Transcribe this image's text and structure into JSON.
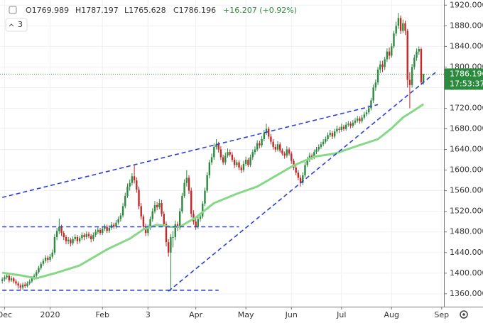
{
  "chart_data": {
    "type": "candlestick",
    "header": [
      "O1769.989",
      "H1787.197",
      "L1765.628",
      "C1786.196",
      "+16.207 (+0.92%)"
    ],
    "indicator_count": "3",
    "countdown": "17:53:37",
    "up_color": "#2b8a3e",
    "down_color": "#c62828",
    "grid": true,
    "xlim": [
      -1,
      194
    ],
    "ylim": [
      1335,
      1930
    ],
    "xticks": [
      {
        "value": 1,
        "label": "Dec"
      },
      {
        "value": 21,
        "label": "2020"
      },
      {
        "value": 44,
        "label": "Feb"
      },
      {
        "value": 64,
        "label": "3"
      },
      {
        "value": 85,
        "label": "Apr"
      },
      {
        "value": 107,
        "label": "May"
      },
      {
        "value": 127,
        "label": "Jun"
      },
      {
        "value": 149,
        "label": "Jul"
      },
      {
        "value": 171,
        "label": "Aug"
      },
      {
        "value": 193,
        "label": "Sep"
      }
    ],
    "yticks": [
      {
        "value": 1360,
        "label": "1360.000"
      },
      {
        "value": 1400,
        "label": "1400.000"
      },
      {
        "value": 1440,
        "label": "1440.000"
      },
      {
        "value": 1480,
        "label": "1480.000"
      },
      {
        "value": 1520,
        "label": "1520.000"
      },
      {
        "value": 1560,
        "label": "1560.000"
      },
      {
        "value": 1600,
        "label": "1600.000"
      },
      {
        "value": 1640,
        "label": "1640.000"
      },
      {
        "value": 1680,
        "label": "1680.000"
      },
      {
        "value": 1720,
        "label": "1720.000"
      },
      {
        "value": 1760,
        "label": "1760.000"
      },
      {
        "value": 1800,
        "label": "1800.000"
      },
      {
        "value": 1840,
        "label": "1840.000"
      },
      {
        "value": 1880,
        "label": "1880.000"
      },
      {
        "value": 1920,
        "label": "1920.000"
      }
    ],
    "ohlc": [
      [
        1385,
        1392,
        1380,
        1388
      ],
      [
        1388,
        1396,
        1384,
        1392
      ],
      [
        1392,
        1399,
        1388,
        1395
      ],
      [
        1395,
        1398,
        1382,
        1386
      ],
      [
        1386,
        1394,
        1383,
        1390
      ],
      [
        1390,
        1393,
        1380,
        1384
      ],
      [
        1384,
        1388,
        1376,
        1380
      ],
      [
        1380,
        1384,
        1370,
        1376
      ],
      [
        1376,
        1380,
        1366,
        1372
      ],
      [
        1372,
        1382,
        1368,
        1378
      ],
      [
        1378,
        1383,
        1371,
        1375
      ],
      [
        1375,
        1384,
        1372,
        1380
      ],
      [
        1380,
        1388,
        1377,
        1384
      ],
      [
        1384,
        1394,
        1381,
        1390
      ],
      [
        1390,
        1399,
        1387,
        1395
      ],
      [
        1395,
        1406,
        1392,
        1402
      ],
      [
        1402,
        1414,
        1399,
        1410
      ],
      [
        1410,
        1422,
        1406,
        1418
      ],
      [
        1418,
        1428,
        1414,
        1424
      ],
      [
        1424,
        1435,
        1420,
        1430
      ],
      [
        1430,
        1434,
        1420,
        1426
      ],
      [
        1426,
        1437,
        1422,
        1432
      ],
      [
        1432,
        1446,
        1428,
        1440
      ],
      [
        1440,
        1476,
        1436,
        1470
      ],
      [
        1470,
        1488,
        1464,
        1482
      ],
      [
        1482,
        1506,
        1476,
        1490
      ],
      [
        1490,
        1494,
        1472,
        1478
      ],
      [
        1478,
        1482,
        1464,
        1470
      ],
      [
        1470,
        1474,
        1456,
        1462
      ],
      [
        1462,
        1470,
        1456,
        1465
      ],
      [
        1465,
        1469,
        1452,
        1458
      ],
      [
        1458,
        1471,
        1454,
        1466
      ],
      [
        1466,
        1475,
        1462,
        1470
      ],
      [
        1470,
        1474,
        1456,
        1462
      ],
      [
        1462,
        1472,
        1458,
        1468
      ],
      [
        1468,
        1479,
        1464,
        1474
      ],
      [
        1474,
        1478,
        1464,
        1470
      ],
      [
        1470,
        1481,
        1466,
        1476
      ],
      [
        1476,
        1480,
        1468,
        1472
      ],
      [
        1472,
        1476,
        1460,
        1466
      ],
      [
        1466,
        1479,
        1462,
        1474
      ],
      [
        1474,
        1485,
        1470,
        1480
      ],
      [
        1480,
        1489,
        1476,
        1484
      ],
      [
        1484,
        1488,
        1474,
        1478
      ],
      [
        1478,
        1491,
        1474,
        1486
      ],
      [
        1486,
        1495,
        1482,
        1490
      ],
      [
        1490,
        1494,
        1478,
        1482
      ],
      [
        1482,
        1493,
        1478,
        1488
      ],
      [
        1488,
        1499,
        1484,
        1494
      ],
      [
        1494,
        1498,
        1486,
        1490
      ],
      [
        1490,
        1503,
        1486,
        1498
      ],
      [
        1498,
        1510,
        1494,
        1505
      ],
      [
        1505,
        1517,
        1500,
        1512
      ],
      [
        1512,
        1536,
        1508,
        1530
      ],
      [
        1530,
        1556,
        1526,
        1550
      ],
      [
        1550,
        1574,
        1546,
        1568
      ],
      [
        1568,
        1582,
        1560,
        1575
      ],
      [
        1575,
        1594,
        1570,
        1588
      ],
      [
        1588,
        1610,
        1574,
        1580
      ],
      [
        1580,
        1586,
        1556,
        1562
      ],
      [
        1562,
        1568,
        1524,
        1530
      ],
      [
        1530,
        1536,
        1504,
        1510
      ],
      [
        1510,
        1514,
        1484,
        1490
      ],
      [
        1490,
        1496,
        1472,
        1478
      ],
      [
        1478,
        1494,
        1472,
        1488
      ],
      [
        1488,
        1510,
        1484,
        1505
      ],
      [
        1505,
        1526,
        1500,
        1520
      ],
      [
        1520,
        1540,
        1516,
        1532
      ],
      [
        1532,
        1538,
        1522,
        1528
      ],
      [
        1528,
        1544,
        1524,
        1536
      ],
      [
        1536,
        1542,
        1510,
        1515
      ],
      [
        1515,
        1520,
        1490,
        1495
      ],
      [
        1495,
        1500,
        1452,
        1460
      ],
      [
        1460,
        1466,
        1432,
        1440
      ],
      [
        1440,
        1476,
        1365,
        1470
      ],
      [
        1470,
        1482,
        1450,
        1470
      ],
      [
        1470,
        1502,
        1464,
        1495
      ],
      [
        1495,
        1500,
        1482,
        1488
      ],
      [
        1488,
        1526,
        1484,
        1520
      ],
      [
        1520,
        1556,
        1516,
        1550
      ],
      [
        1550,
        1582,
        1546,
        1575
      ],
      [
        1575,
        1600,
        1568,
        1585
      ],
      [
        1585,
        1590,
        1554,
        1560
      ],
      [
        1560,
        1566,
        1508,
        1515
      ],
      [
        1515,
        1522,
        1494,
        1500
      ],
      [
        1500,
        1506,
        1484,
        1490
      ],
      [
        1490,
        1510,
        1486,
        1505
      ],
      [
        1505,
        1516,
        1500,
        1510
      ],
      [
        1510,
        1540,
        1506,
        1535
      ],
      [
        1535,
        1566,
        1530,
        1560
      ],
      [
        1560,
        1596,
        1556,
        1590
      ],
      [
        1590,
        1620,
        1584,
        1615
      ],
      [
        1615,
        1632,
        1610,
        1625
      ],
      [
        1625,
        1652,
        1620,
        1645
      ],
      [
        1645,
        1660,
        1640,
        1650
      ],
      [
        1650,
        1655,
        1634,
        1640
      ],
      [
        1640,
        1646,
        1620,
        1625
      ],
      [
        1625,
        1630,
        1610,
        1615
      ],
      [
        1615,
        1634,
        1610,
        1628
      ],
      [
        1628,
        1642,
        1624,
        1635
      ],
      [
        1635,
        1640,
        1626,
        1630
      ],
      [
        1630,
        1635,
        1616,
        1620
      ],
      [
        1620,
        1625,
        1604,
        1610
      ],
      [
        1610,
        1620,
        1606,
        1615
      ],
      [
        1615,
        1619,
        1600,
        1605
      ],
      [
        1605,
        1610,
        1594,
        1600
      ],
      [
        1600,
        1618,
        1596,
        1612
      ],
      [
        1612,
        1626,
        1608,
        1620
      ],
      [
        1620,
        1624,
        1606,
        1610
      ],
      [
        1610,
        1630,
        1606,
        1625
      ],
      [
        1625,
        1640,
        1620,
        1635
      ],
      [
        1635,
        1646,
        1630,
        1640
      ],
      [
        1640,
        1658,
        1636,
        1652
      ],
      [
        1652,
        1657,
        1642,
        1648
      ],
      [
        1648,
        1666,
        1644,
        1660
      ],
      [
        1660,
        1678,
        1656,
        1672
      ],
      [
        1672,
        1690,
        1668,
        1680
      ],
      [
        1680,
        1684,
        1660,
        1665
      ],
      [
        1665,
        1670,
        1650,
        1655
      ],
      [
        1655,
        1660,
        1640,
        1645
      ],
      [
        1645,
        1650,
        1635,
        1640
      ],
      [
        1640,
        1656,
        1636,
        1650
      ],
      [
        1650,
        1654,
        1634,
        1638
      ],
      [
        1638,
        1642,
        1628,
        1632
      ],
      [
        1632,
        1636,
        1622,
        1628
      ],
      [
        1628,
        1646,
        1624,
        1640
      ],
      [
        1640,
        1644,
        1628,
        1632
      ],
      [
        1632,
        1636,
        1612,
        1618
      ],
      [
        1618,
        1622,
        1600,
        1605
      ],
      [
        1605,
        1610,
        1590,
        1595
      ],
      [
        1595,
        1600,
        1580,
        1585
      ],
      [
        1585,
        1590,
        1568,
        1575
      ],
      [
        1575,
        1596,
        1571,
        1590
      ],
      [
        1590,
        1616,
        1586,
        1610
      ],
      [
        1610,
        1626,
        1606,
        1620
      ],
      [
        1620,
        1634,
        1616,
        1628
      ],
      [
        1628,
        1632,
        1620,
        1625
      ],
      [
        1625,
        1640,
        1621,
        1635
      ],
      [
        1635,
        1645,
        1631,
        1640
      ],
      [
        1640,
        1650,
        1636,
        1645
      ],
      [
        1645,
        1655,
        1641,
        1650
      ],
      [
        1650,
        1660,
        1646,
        1655
      ],
      [
        1655,
        1665,
        1651,
        1660
      ],
      [
        1660,
        1673,
        1656,
        1668
      ],
      [
        1668,
        1678,
        1664,
        1672
      ],
      [
        1672,
        1676,
        1660,
        1665
      ],
      [
        1665,
        1680,
        1661,
        1675
      ],
      [
        1675,
        1686,
        1671,
        1680
      ],
      [
        1680,
        1684,
        1672,
        1678
      ],
      [
        1678,
        1690,
        1674,
        1684
      ],
      [
        1684,
        1688,
        1676,
        1680
      ],
      [
        1680,
        1693,
        1676,
        1688
      ],
      [
        1688,
        1695,
        1684,
        1690
      ],
      [
        1690,
        1694,
        1681,
        1686
      ],
      [
        1686,
        1697,
        1682,
        1692
      ],
      [
        1692,
        1701,
        1688,
        1696
      ],
      [
        1696,
        1705,
        1692,
        1700
      ],
      [
        1700,
        1704,
        1690,
        1695
      ],
      [
        1695,
        1707,
        1691,
        1702
      ],
      [
        1702,
        1713,
        1698,
        1708
      ],
      [
        1708,
        1717,
        1704,
        1712
      ],
      [
        1712,
        1726,
        1708,
        1720
      ],
      [
        1720,
        1740,
        1716,
        1735
      ],
      [
        1735,
        1766,
        1730,
        1760
      ],
      [
        1760,
        1776,
        1754,
        1770
      ],
      [
        1770,
        1800,
        1765,
        1795
      ],
      [
        1795,
        1812,
        1788,
        1805
      ],
      [
        1805,
        1812,
        1790,
        1800
      ],
      [
        1800,
        1820,
        1794,
        1815
      ],
      [
        1815,
        1836,
        1810,
        1830
      ],
      [
        1830,
        1838,
        1815,
        1822
      ],
      [
        1822,
        1846,
        1818,
        1840
      ],
      [
        1840,
        1870,
        1836,
        1865
      ],
      [
        1865,
        1888,
        1860,
        1880
      ],
      [
        1880,
        1905,
        1874,
        1895
      ],
      [
        1895,
        1900,
        1864,
        1870
      ],
      [
        1870,
        1892,
        1866,
        1885
      ],
      [
        1885,
        1890,
        1862,
        1870
      ],
      [
        1870,
        1874,
        1760,
        1775
      ],
      [
        1775,
        1790,
        1720,
        1765
      ],
      [
        1765,
        1806,
        1760,
        1800
      ],
      [
        1800,
        1824,
        1795,
        1818
      ],
      [
        1818,
        1836,
        1812,
        1830
      ],
      [
        1830,
        1840,
        1824,
        1835
      ],
      [
        1835,
        1838,
        1765,
        1769.989
      ],
      [
        1769.989,
        1787.197,
        1765.628,
        1786.196
      ]
    ],
    "ma": {
      "color": "#86d886",
      "x": [
        0,
        9,
        15,
        24,
        34,
        46,
        56,
        62,
        68,
        74,
        78,
        85,
        93,
        103,
        112,
        121,
        128,
        137,
        146,
        156,
        165,
        171,
        176,
        181,
        185
      ],
      "values": [
        1401,
        1395,
        1390,
        1401,
        1415,
        1446,
        1467,
        1485,
        1494,
        1490,
        1490,
        1508,
        1536,
        1554,
        1568,
        1591,
        1609,
        1626,
        1632,
        1647,
        1660,
        1681,
        1702,
        1716,
        1728
      ]
    },
    "trendline_color": "#2c3fd6",
    "trendlines": [
      {
        "x": [
          0,
          165
        ],
        "y": [
          1547,
          1727
        ]
      },
      {
        "x": [
          0,
          104
        ],
        "y": [
          1490,
          1490
        ]
      },
      {
        "x": [
          0,
          95
        ],
        "y": [
          1367,
          1367
        ]
      },
      {
        "x": [
          73,
          191
        ],
        "y": [
          1365,
          1792
        ]
      }
    ]
  }
}
